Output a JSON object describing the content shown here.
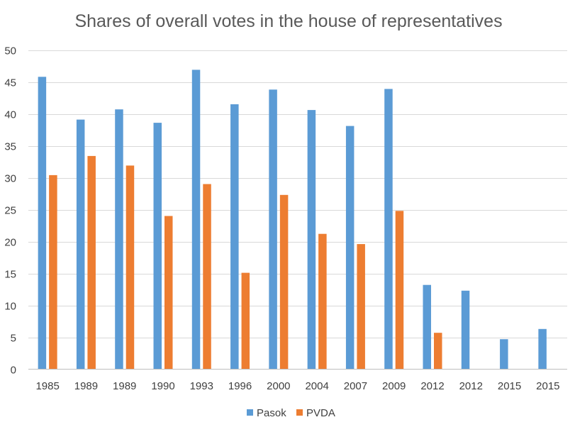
{
  "chart_data": {
    "type": "bar",
    "title": "Shares of overall votes in the house of representatives",
    "xlabel": "",
    "ylabel": "",
    "ylim": [
      0,
      50
    ],
    "yticks": [
      0,
      5,
      10,
      15,
      20,
      25,
      30,
      35,
      40,
      45,
      50
    ],
    "grid": true,
    "legend_position": "bottom",
    "categories": [
      "1985",
      "1989",
      "1989",
      "1990",
      "1993",
      "1996",
      "2000",
      "2004",
      "2007",
      "2009",
      "2012",
      "2012",
      "2015",
      "2015"
    ],
    "series": [
      {
        "name": "Pasok",
        "color": "#5b9bd5",
        "values": [
          45.8,
          39.1,
          40.7,
          38.6,
          46.9,
          41.5,
          43.8,
          40.6,
          38.1,
          43.9,
          13.2,
          12.3,
          4.7,
          6.3
        ]
      },
      {
        "name": "PVDA",
        "color": "#ed7d31",
        "values": [
          30.4,
          33.4,
          31.9,
          24.0,
          29.0,
          15.1,
          27.3,
          21.2,
          19.6,
          24.8,
          5.7,
          null,
          null,
          null
        ]
      }
    ]
  }
}
